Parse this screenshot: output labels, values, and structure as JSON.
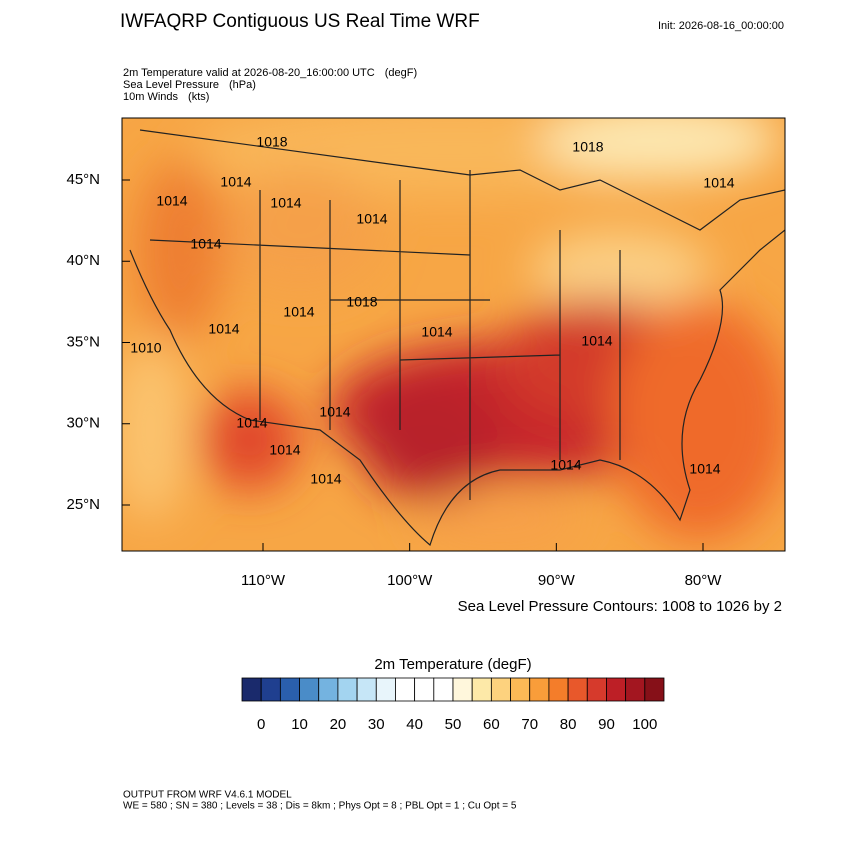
{
  "header": {
    "title": "IWFAQRP Contiguous US Real Time WRF",
    "init": "Init: 2026-08-16_00:00:00",
    "fields": [
      {
        "name": "2m Temperature valid at 2026-08-20_16:00:00 UTC",
        "unit": "(degF)"
      },
      {
        "name": "Sea Level Pressure",
        "unit": "(hPa)"
      },
      {
        "name": "10m Winds",
        "unit": "(kts)"
      }
    ]
  },
  "map": {
    "lon_ticks": [
      {
        "value": -110,
        "label": "110°W"
      },
      {
        "value": -100,
        "label": "100°W"
      },
      {
        "value": -90,
        "label": "90°W"
      },
      {
        "value": -80,
        "label": "80°W"
      }
    ],
    "lat_ticks": [
      {
        "value": 45,
        "label": "45°N"
      },
      {
        "value": 40,
        "label": "40°N"
      },
      {
        "value": 35,
        "label": "35°N"
      },
      {
        "value": 30,
        "label": "30°N"
      },
      {
        "value": 25,
        "label": "25°N"
      }
    ],
    "contour_labels": [
      "1018",
      "1014",
      "1014",
      "1014",
      "1014",
      "1018",
      "1014",
      "1014",
      "1014",
      "1018",
      "1014",
      "1010",
      "1014",
      "1014",
      "1014",
      "1014",
      "1014",
      "1014",
      "1014",
      "1014"
    ],
    "contour_note": "Sea Level Pressure Contours: 1008 to 1026 by 2"
  },
  "colorbar": {
    "title": "2m Temperature  (degF)",
    "lim": [
      -5,
      105
    ],
    "colors": [
      "#1a2a6c",
      "#1f3f8f",
      "#2a5fad",
      "#4a8cc8",
      "#74b3e0",
      "#a3d4f0",
      "#c6e6f7",
      "#e8f5fb",
      "#ffffff",
      "#ffffff",
      "#ffffff",
      "#fff7dc",
      "#fde9a8",
      "#fdd27e",
      "#fcb956",
      "#f99d3a",
      "#f47d2a",
      "#e8582b",
      "#d63a2c",
      "#bd1f26",
      "#a31620",
      "#861018"
    ],
    "ticks": [
      0,
      10,
      20,
      30,
      40,
      50,
      60,
      70,
      80,
      90,
      100
    ]
  },
  "footer": {
    "model": "OUTPUT FROM WRF V4.6.1 MODEL",
    "config": "WE = 580 ; SN = 380 ; Levels = 38 ; Dis = 8km ; Phys Opt = 8 ; PBL Opt = 1 ; Cu Opt = 5"
  }
}
